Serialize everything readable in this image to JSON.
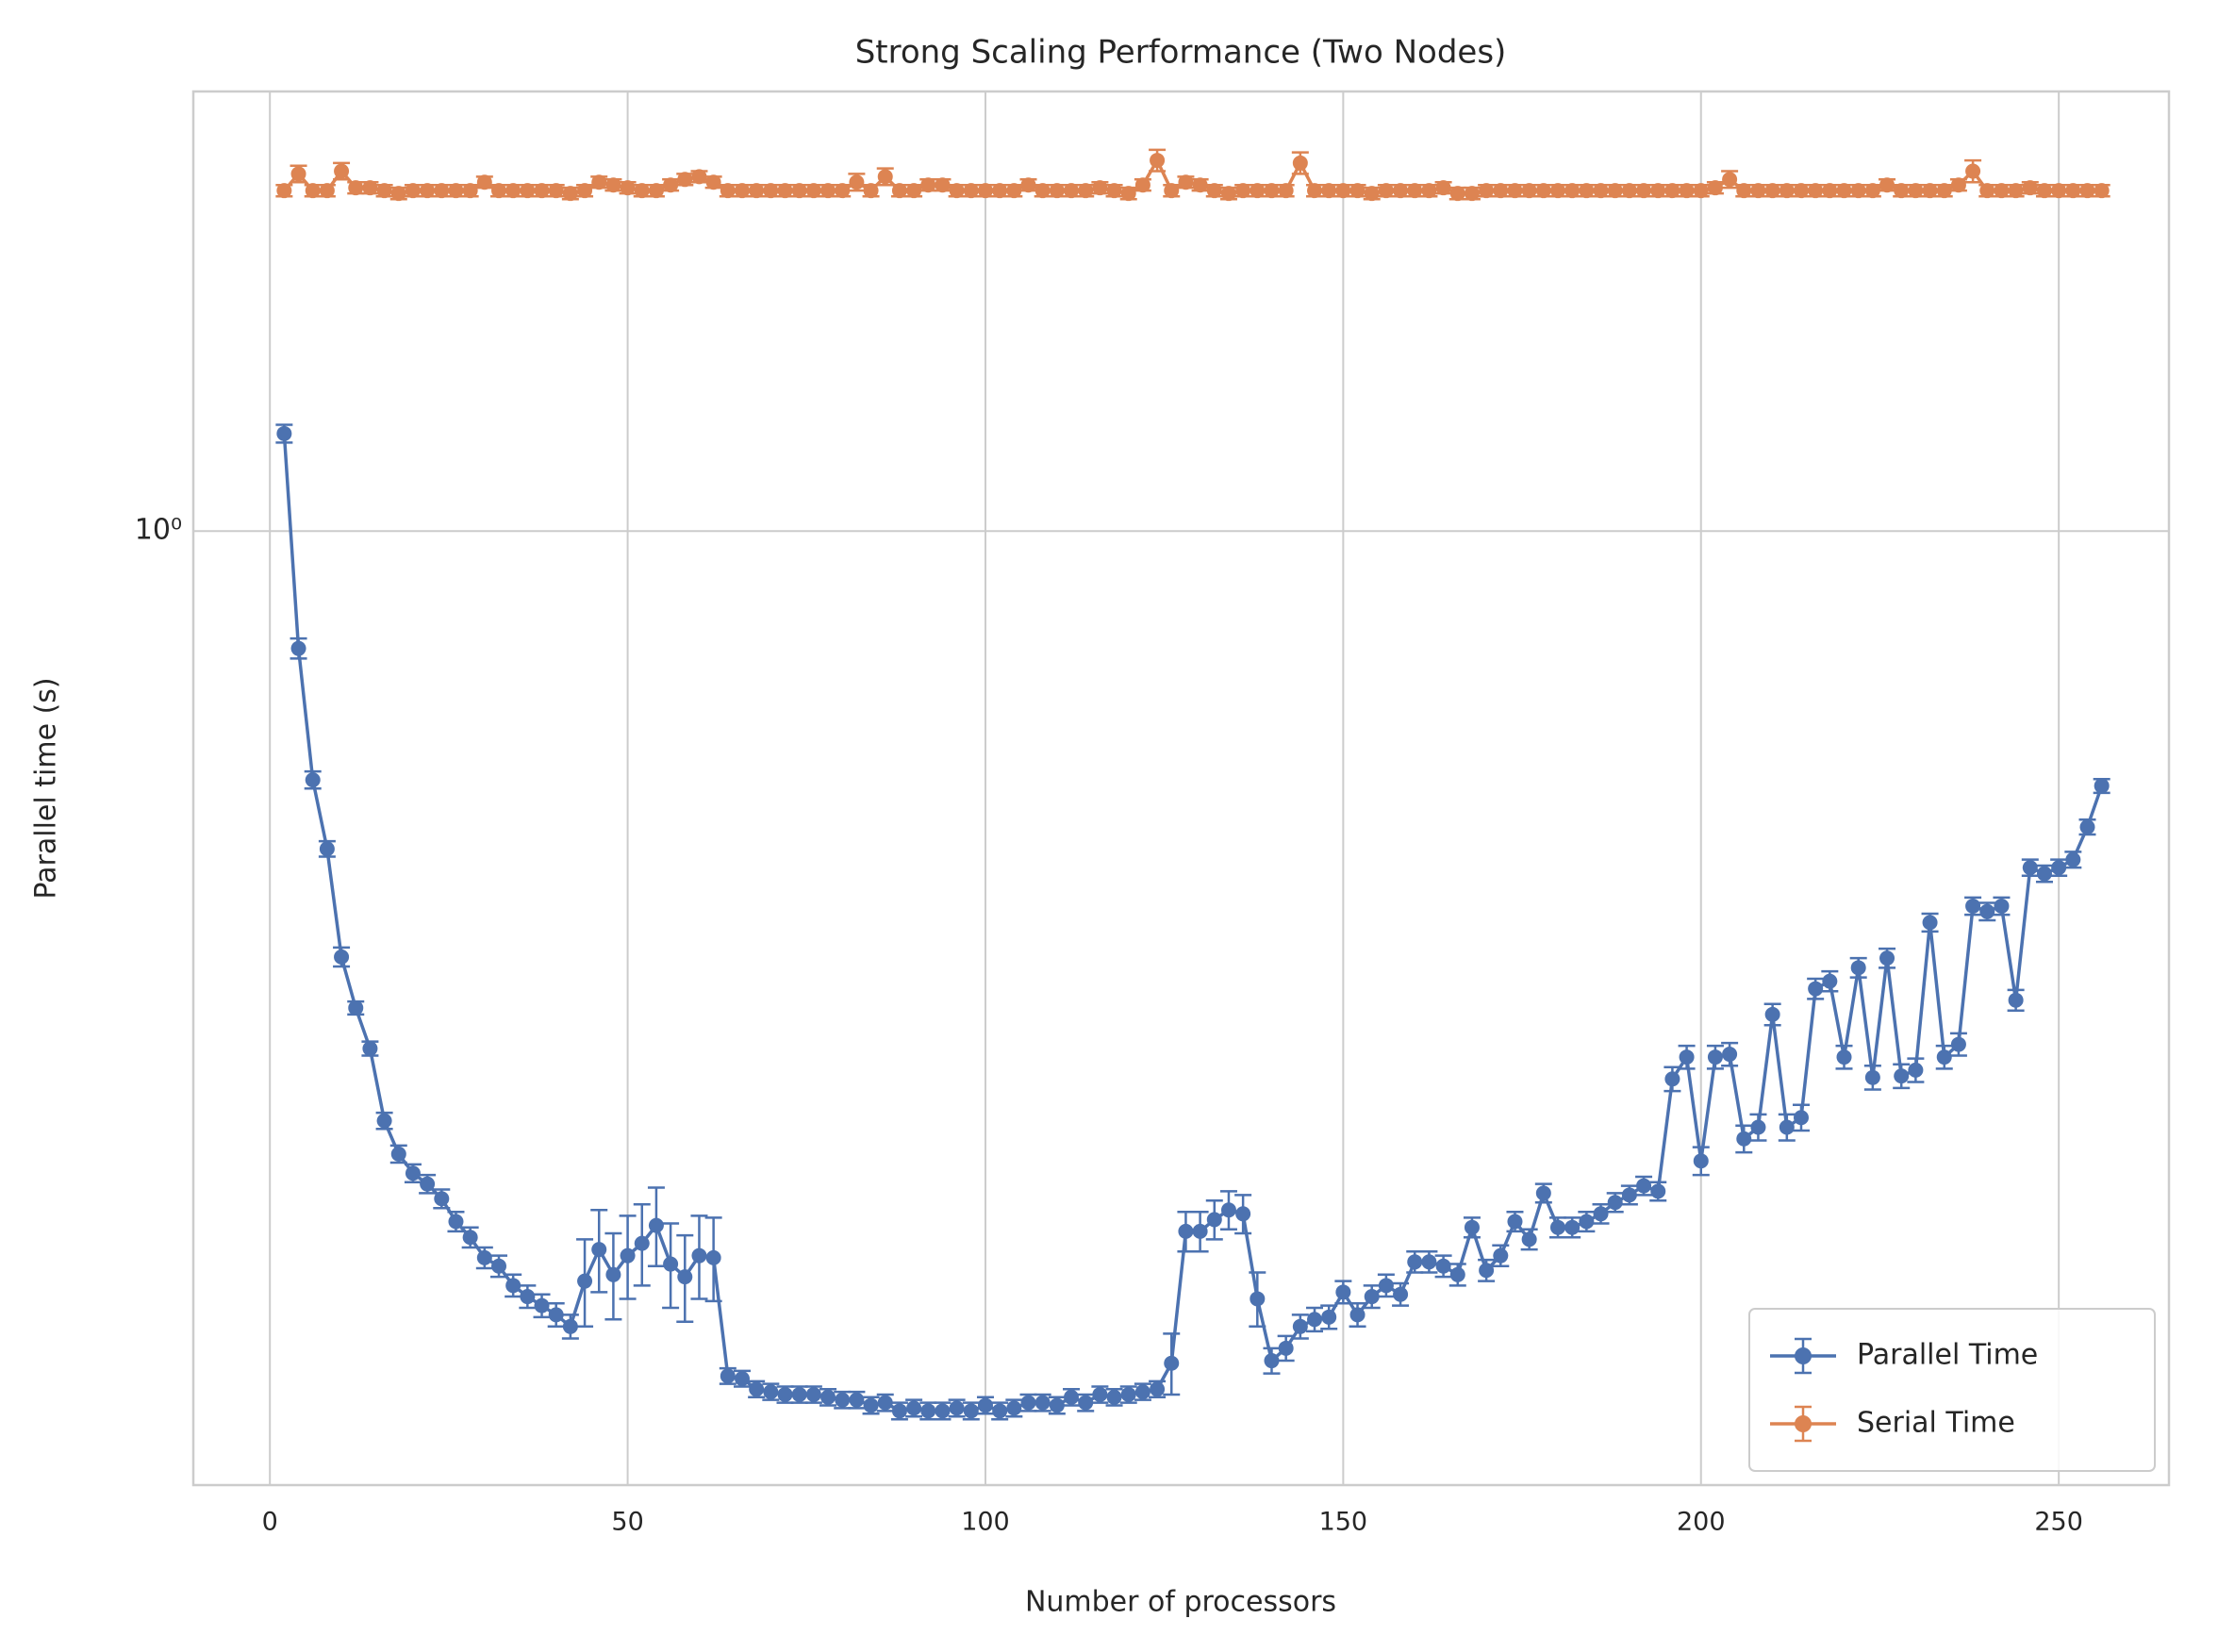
{
  "chart_data": {
    "type": "errorbar-line",
    "title": "Strong Scaling Performance (Two Nodes)",
    "x_label": "Number of processors",
    "y_label": "Parallel time (s)",
    "x": [
      2,
      4,
      6,
      8,
      10,
      12,
      14,
      16,
      18,
      20,
      22,
      24,
      26,
      28,
      30,
      32,
      34,
      36,
      38,
      40,
      42,
      44,
      46,
      48,
      50,
      52,
      54,
      56,
      58,
      60,
      62,
      64,
      66,
      68,
      70,
      72,
      74,
      76,
      78,
      80,
      82,
      84,
      86,
      88,
      90,
      92,
      94,
      96,
      98,
      100,
      102,
      104,
      106,
      108,
      110,
      112,
      114,
      116,
      118,
      120,
      122,
      124,
      126,
      128,
      130,
      132,
      134,
      136,
      138,
      140,
      142,
      144,
      146,
      148,
      150,
      152,
      154,
      156,
      158,
      160,
      162,
      164,
      166,
      168,
      170,
      172,
      174,
      176,
      178,
      180,
      182,
      184,
      186,
      188,
      190,
      192,
      194,
      196,
      198,
      200,
      202,
      204,
      206,
      208,
      210,
      212,
      214,
      216,
      218,
      220,
      222,
      224,
      226,
      228,
      230,
      232,
      234,
      236,
      238,
      240,
      242,
      244,
      246,
      248,
      250,
      252,
      254,
      256
    ],
    "series": [
      {
        "name": "Parallel Time",
        "color": "#4c72b0",
        "values": [
          1.2,
          0.803,
          0.628,
          0.552,
          0.451,
          0.41,
          0.38,
          0.332,
          0.312,
          0.301,
          0.295,
          0.287,
          0.275,
          0.267,
          0.257,
          0.253,
          0.244,
          0.239,
          0.235,
          0.231,
          0.226,
          0.246,
          0.261,
          0.249,
          0.258,
          0.264,
          0.273,
          0.254,
          0.248,
          0.258,
          0.257,
          0.206,
          0.205,
          0.201,
          0.2,
          0.199,
          0.199,
          0.199,
          0.198,
          0.197,
          0.197,
          0.195,
          0.196,
          0.193,
          0.194,
          0.193,
          0.193,
          0.194,
          0.193,
          0.195,
          0.193,
          0.194,
          0.196,
          0.196,
          0.195,
          0.198,
          0.196,
          0.199,
          0.198,
          0.199,
          0.2,
          0.201,
          0.211,
          0.27,
          0.27,
          0.276,
          0.281,
          0.279,
          0.238,
          0.212,
          0.217,
          0.226,
          0.229,
          0.23,
          0.241,
          0.231,
          0.239,
          0.244,
          0.24,
          0.255,
          0.255,
          0.253,
          0.249,
          0.272,
          0.251,
          0.258,
          0.275,
          0.266,
          0.29,
          0.272,
          0.272,
          0.275,
          0.279,
          0.285,
          0.289,
          0.294,
          0.291,
          0.359,
          0.374,
          0.308,
          0.374,
          0.376,
          0.321,
          0.328,
          0.405,
          0.328,
          0.334,
          0.425,
          0.431,
          0.374,
          0.442,
          0.36,
          0.45,
          0.361,
          0.365,
          0.481,
          0.374,
          0.383,
          0.496,
          0.491,
          0.496,
          0.416,
          0.533,
          0.527,
          0.533,
          0.541,
          0.575,
          0.621
        ],
        "errors": [
          0.02,
          0.015,
          0.01,
          0.008,
          0.008,
          0.005,
          0.005,
          0.005,
          0.005,
          0.005,
          0.005,
          0.005,
          0.005,
          0.005,
          0.005,
          0.005,
          0.005,
          0.005,
          0.005,
          0.005,
          0.005,
          0.02,
          0.02,
          0.02,
          0.02,
          0.02,
          0.02,
          0.02,
          0.02,
          0.02,
          0.02,
          0.003,
          0.003,
          0.003,
          0.003,
          0.003,
          0.003,
          0.003,
          0.003,
          0.003,
          0.003,
          0.003,
          0.003,
          0.003,
          0.003,
          0.003,
          0.003,
          0.003,
          0.003,
          0.003,
          0.003,
          0.003,
          0.003,
          0.003,
          0.003,
          0.003,
          0.003,
          0.003,
          0.003,
          0.003,
          0.003,
          0.003,
          0.012,
          0.01,
          0.01,
          0.01,
          0.01,
          0.01,
          0.012,
          0.005,
          0.005,
          0.005,
          0.005,
          0.005,
          0.005,
          0.005,
          0.005,
          0.005,
          0.005,
          0.005,
          0.005,
          0.005,
          0.005,
          0.005,
          0.005,
          0.005,
          0.005,
          0.005,
          0.005,
          0.005,
          0.005,
          0.005,
          0.005,
          0.005,
          0.005,
          0.005,
          0.005,
          0.008,
          0.008,
          0.008,
          0.008,
          0.008,
          0.008,
          0.008,
          0.008,
          0.008,
          0.008,
          0.008,
          0.008,
          0.008,
          0.008,
          0.008,
          0.008,
          0.008,
          0.008,
          0.008,
          0.008,
          0.008,
          0.008,
          0.008,
          0.008,
          0.008,
          0.008,
          0.008,
          0.008,
          0.008,
          0.008,
          0.008
        ]
      },
      {
        "name": "Serial Time",
        "color": "#dd8452",
        "values": [
          1.89,
          1.95,
          1.89,
          1.89,
          1.96,
          1.9,
          1.9,
          1.89,
          1.88,
          1.89,
          1.89,
          1.89,
          1.89,
          1.89,
          1.92,
          1.89,
          1.89,
          1.89,
          1.89,
          1.89,
          1.88,
          1.89,
          1.92,
          1.91,
          1.9,
          1.89,
          1.89,
          1.91,
          1.93,
          1.94,
          1.92,
          1.89,
          1.89,
          1.89,
          1.89,
          1.89,
          1.89,
          1.89,
          1.89,
          1.89,
          1.92,
          1.89,
          1.94,
          1.89,
          1.89,
          1.91,
          1.91,
          1.89,
          1.89,
          1.89,
          1.89,
          1.89,
          1.91,
          1.89,
          1.89,
          1.89,
          1.89,
          1.9,
          1.89,
          1.88,
          1.91,
          2.0,
          1.89,
          1.92,
          1.91,
          1.89,
          1.88,
          1.89,
          1.89,
          1.89,
          1.89,
          1.99,
          1.89,
          1.89,
          1.89,
          1.89,
          1.88,
          1.89,
          1.89,
          1.89,
          1.89,
          1.9,
          1.88,
          1.88,
          1.89,
          1.89,
          1.89,
          1.89,
          1.89,
          1.89,
          1.89,
          1.89,
          1.89,
          1.89,
          1.89,
          1.89,
          1.89,
          1.89,
          1.89,
          1.89,
          1.9,
          1.93,
          1.89,
          1.89,
          1.89,
          1.89,
          1.89,
          1.89,
          1.89,
          1.89,
          1.89,
          1.89,
          1.91,
          1.89,
          1.89,
          1.89,
          1.89,
          1.91,
          1.96,
          1.89,
          1.89,
          1.89,
          1.9,
          1.89,
          1.89,
          1.89,
          1.89,
          1.89
        ],
        "errors": [
          0.02,
          0.03,
          0.02,
          0.02,
          0.03,
          0.02,
          0.02,
          0.02,
          0.02,
          0.02,
          0.02,
          0.02,
          0.02,
          0.02,
          0.02,
          0.02,
          0.02,
          0.02,
          0.02,
          0.02,
          0.02,
          0.02,
          0.02,
          0.02,
          0.02,
          0.02,
          0.02,
          0.02,
          0.02,
          0.02,
          0.02,
          0.02,
          0.02,
          0.02,
          0.02,
          0.02,
          0.02,
          0.02,
          0.02,
          0.02,
          0.03,
          0.02,
          0.03,
          0.02,
          0.02,
          0.02,
          0.02,
          0.02,
          0.02,
          0.02,
          0.02,
          0.02,
          0.02,
          0.02,
          0.02,
          0.02,
          0.02,
          0.02,
          0.02,
          0.02,
          0.02,
          0.04,
          0.02,
          0.02,
          0.02,
          0.02,
          0.02,
          0.02,
          0.02,
          0.02,
          0.02,
          0.04,
          0.02,
          0.02,
          0.02,
          0.02,
          0.02,
          0.02,
          0.02,
          0.02,
          0.02,
          0.02,
          0.02,
          0.02,
          0.02,
          0.02,
          0.02,
          0.02,
          0.02,
          0.02,
          0.02,
          0.02,
          0.02,
          0.02,
          0.02,
          0.02,
          0.02,
          0.02,
          0.02,
          0.02,
          0.02,
          0.03,
          0.02,
          0.02,
          0.02,
          0.02,
          0.02,
          0.02,
          0.02,
          0.02,
          0.02,
          0.02,
          0.02,
          0.02,
          0.02,
          0.02,
          0.02,
          0.02,
          0.04,
          0.02,
          0.02,
          0.02,
          0.02,
          0.02,
          0.02,
          0.02,
          0.02,
          0.02
        ]
      }
    ],
    "xlim": [
      -10.7,
      265.4
    ],
    "xticks": [
      0,
      50,
      100,
      150,
      200,
      250
    ],
    "ylim": [
      0.168,
      2.275
    ],
    "yticks": [
      {
        "value": 1,
        "label": "10⁰"
      }
    ],
    "y_scale": "log",
    "grid": true,
    "legend": "lower right"
  }
}
